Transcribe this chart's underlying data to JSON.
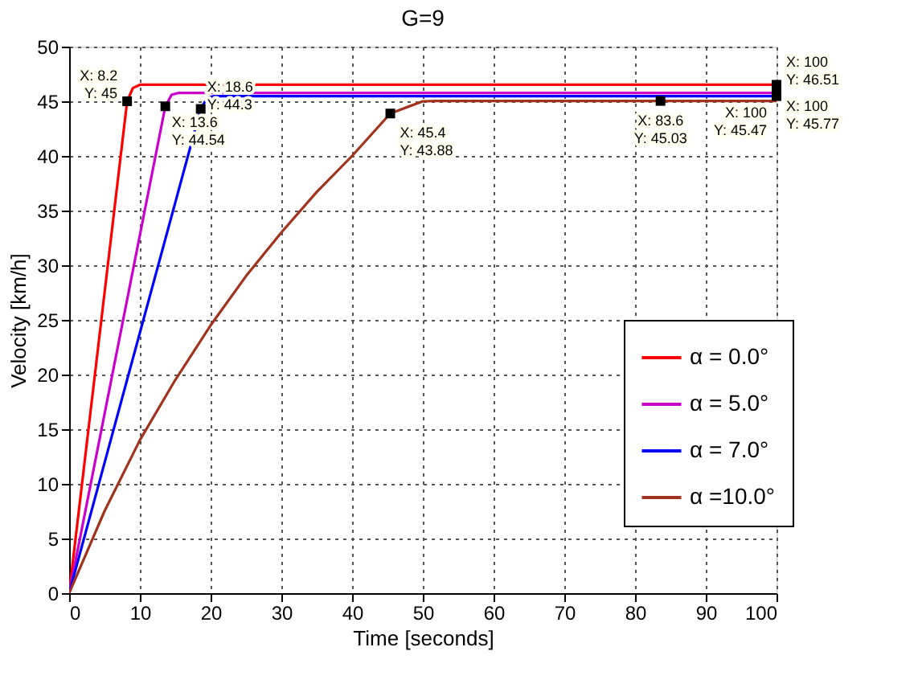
{
  "chart_data": {
    "type": "line",
    "title": "G=9",
    "xlabel": "Time [seconds]",
    "ylabel": "Velocity [km/h]",
    "xlim": [
      0,
      100
    ],
    "xticks": [
      0,
      10,
      20,
      30,
      40,
      50,
      60,
      70,
      80,
      90,
      100
    ],
    "ylim": [
      0,
      50
    ],
    "yticks": [
      0,
      5,
      10,
      15,
      20,
      25,
      30,
      35,
      40,
      45,
      50
    ],
    "grid": true,
    "legend": "right",
    "line_style": "solid",
    "marker": "none",
    "series": [
      {
        "name": "α = 0.0°",
        "color": "#ff0000",
        "x": [
          0,
          8.2,
          9,
          10,
          100
        ],
        "values": [
          0,
          45,
          46.2,
          46.51,
          46.51
        ]
      },
      {
        "name": "α = 5.0°",
        "color": "#cc00cc",
        "x": [
          0,
          13.6,
          14.5,
          15.5,
          100
        ],
        "values": [
          0,
          44.54,
          45.6,
          45.77,
          45.77
        ]
      },
      {
        "name": "α = 7.0°",
        "color": "#0000ff",
        "x": [
          0,
          18.6,
          19.5,
          20.5,
          100
        ],
        "values": [
          0,
          44.3,
          45.3,
          45.47,
          45.47
        ]
      },
      {
        "name": "α =10.0°",
        "color": "#a0321e",
        "x": [
          0,
          5,
          10,
          15,
          20,
          25,
          30,
          35,
          40,
          45.4,
          50,
          52,
          100
        ],
        "values": [
          0,
          7.5,
          14,
          19.5,
          24.5,
          29,
          33,
          36.7,
          40,
          43.88,
          45,
          45.03,
          45.03
        ]
      }
    ],
    "annotations": [
      {
        "text": "X: 8.2\nY: 45",
        "x": 8.2,
        "y": 45
      },
      {
        "text": "X: 18.6\nY: 44.3",
        "x": 18.6,
        "y": 44.3
      },
      {
        "text": "X: 13.6\nY: 44.54",
        "x": 13.6,
        "y": 44.54
      },
      {
        "text": "X: 45.4\nY: 43.88",
        "x": 45.4,
        "y": 43.88
      },
      {
        "text": "X: 83.6\nY: 45.03",
        "x": 83.6,
        "y": 45.03
      },
      {
        "text": "X: 100\nY: 46.51",
        "x": 100,
        "y": 46.51
      },
      {
        "text": "X: 100\nY: 45.47",
        "x": 100,
        "y": 45.47
      },
      {
        "text": "X: 100\nY: 45.77",
        "x": 100,
        "y": 45.77
      }
    ]
  }
}
